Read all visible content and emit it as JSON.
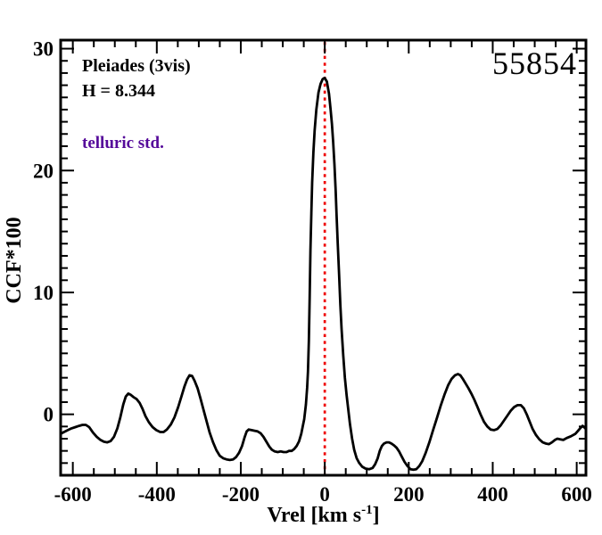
{
  "figure": {
    "star_id": "55854",
    "cluster_label": "Pleiades (3vis)",
    "h_magnitude_label": "H = 8.344",
    "telluric_label": "telluric std.",
    "telluric_color": "#55099a",
    "background": "#ffffff"
  },
  "chart_data": {
    "type": "line",
    "title": "",
    "ylabel": "CCF*100",
    "xlabel": {
      "prefix": "Vrel [km s",
      "sup": "-1",
      "suffix": "]",
      "text": "Vrel [km s^-1]"
    },
    "xlim": [
      -629,
      622
    ],
    "ylim": [
      -5.0,
      30.7
    ],
    "grid": false,
    "legend": "none",
    "frame_color": "#000000",
    "line_color": "#000000",
    "x_major_ticks": [
      {
        "v": -600,
        "label": "-600"
      },
      {
        "v": -400,
        "label": "-400"
      },
      {
        "v": -200,
        "label": "-200"
      },
      {
        "v": 0,
        "label": "0"
      },
      {
        "v": 200,
        "label": "200"
      },
      {
        "v": 400,
        "label": "400"
      },
      {
        "v": 600,
        "label": "600"
      }
    ],
    "x_minor_step": 50,
    "y_major_ticks": [
      {
        "v": 0,
        "label": "0"
      },
      {
        "v": 10,
        "label": "10"
      },
      {
        "v": 20,
        "label": "20"
      },
      {
        "v": 30,
        "label": "30"
      }
    ],
    "y_minor_step": 1,
    "vline": {
      "x": 0,
      "color": "#ee0000",
      "style": "dotted"
    },
    "series": [
      {
        "name": "CCF",
        "peak": {
          "x": 0,
          "y": 27.6
        },
        "points": [
          [
            -629,
            -1.6
          ],
          [
            -621,
            -1.45
          ],
          [
            -612,
            -1.3
          ],
          [
            -603,
            -1.15
          ],
          [
            -594,
            -1.05
          ],
          [
            -585,
            -0.95
          ],
          [
            -577,
            -0.87
          ],
          [
            -569,
            -0.87
          ],
          [
            -561,
            -1.05
          ],
          [
            -552,
            -1.5
          ],
          [
            -543,
            -1.85
          ],
          [
            -534,
            -2.1
          ],
          [
            -526,
            -2.25
          ],
          [
            -518,
            -2.3
          ],
          [
            -510,
            -2.2
          ],
          [
            -502,
            -1.85
          ],
          [
            -494,
            -1.15
          ],
          [
            -487,
            -0.25
          ],
          [
            -480,
            0.8
          ],
          [
            -474,
            1.45
          ],
          [
            -468,
            1.7
          ],
          [
            -462,
            1.6
          ],
          [
            -455,
            1.4
          ],
          [
            -448,
            1.25
          ],
          [
            -441,
            0.95
          ],
          [
            -434,
            0.45
          ],
          [
            -427,
            -0.15
          ],
          [
            -419,
            -0.65
          ],
          [
            -410,
            -1.05
          ],
          [
            -401,
            -1.3
          ],
          [
            -392,
            -1.45
          ],
          [
            -384,
            -1.45
          ],
          [
            -376,
            -1.25
          ],
          [
            -367,
            -0.85
          ],
          [
            -358,
            -0.25
          ],
          [
            -349,
            0.6
          ],
          [
            -341,
            1.5
          ],
          [
            -334,
            2.3
          ],
          [
            -328,
            2.85
          ],
          [
            -322,
            3.2
          ],
          [
            -316,
            3.15
          ],
          [
            -310,
            2.75
          ],
          [
            -303,
            2.15
          ],
          [
            -296,
            1.3
          ],
          [
            -289,
            0.4
          ],
          [
            -282,
            -0.5
          ],
          [
            -274,
            -1.5
          ],
          [
            -266,
            -2.3
          ],
          [
            -258,
            -2.95
          ],
          [
            -250,
            -3.4
          ],
          [
            -242,
            -3.6
          ],
          [
            -234,
            -3.7
          ],
          [
            -226,
            -3.75
          ],
          [
            -218,
            -3.7
          ],
          [
            -211,
            -3.5
          ],
          [
            -204,
            -3.15
          ],
          [
            -197,
            -2.6
          ],
          [
            -191,
            -1.9
          ],
          [
            -186,
            -1.4
          ],
          [
            -181,
            -1.25
          ],
          [
            -174,
            -1.3
          ],
          [
            -167,
            -1.35
          ],
          [
            -160,
            -1.4
          ],
          [
            -153,
            -1.55
          ],
          [
            -146,
            -1.85
          ],
          [
            -139,
            -2.25
          ],
          [
            -132,
            -2.65
          ],
          [
            -126,
            -2.9
          ],
          [
            -119,
            -3.05
          ],
          [
            -112,
            -3.1
          ],
          [
            -105,
            -3.05
          ],
          [
            -98,
            -3.1
          ],
          [
            -91,
            -3.1
          ],
          [
            -85,
            -3.0
          ],
          [
            -79,
            -3.0
          ],
          [
            -73,
            -2.85
          ],
          [
            -67,
            -2.6
          ],
          [
            -61,
            -2.2
          ],
          [
            -56,
            -1.6
          ],
          [
            -52,
            -0.9
          ],
          [
            -49,
            -0.4
          ],
          [
            -45,
            0.8
          ],
          [
            -42,
            2.2
          ],
          [
            -40,
            3.5
          ],
          [
            -38,
            6.0
          ],
          [
            -36,
            9.5
          ],
          [
            -34,
            13.5
          ],
          [
            -32,
            16.5
          ],
          [
            -30,
            19.0
          ],
          [
            -27,
            21.5
          ],
          [
            -24,
            23.3
          ],
          [
            -20,
            25.0
          ],
          [
            -15,
            26.4
          ],
          [
            -10,
            27.1
          ],
          [
            -5,
            27.5
          ],
          [
            0,
            27.6
          ],
          [
            5,
            27.3
          ],
          [
            10,
            26.3
          ],
          [
            14,
            25.0
          ],
          [
            17,
            23.8
          ],
          [
            20,
            22.3
          ],
          [
            23,
            20.5
          ],
          [
            26,
            18.3
          ],
          [
            28,
            16.5
          ],
          [
            31,
            14.0
          ],
          [
            34,
            11.5
          ],
          [
            37,
            9.0
          ],
          [
            40,
            7.0
          ],
          [
            44,
            4.8
          ],
          [
            48,
            3.0
          ],
          [
            52,
            1.6
          ],
          [
            56,
            0.4
          ],
          [
            60,
            -0.8
          ],
          [
            65,
            -2.0
          ],
          [
            70,
            -2.9
          ],
          [
            76,
            -3.6
          ],
          [
            82,
            -4.0
          ],
          [
            89,
            -4.3
          ],
          [
            97,
            -4.45
          ],
          [
            106,
            -4.5
          ],
          [
            114,
            -4.4
          ],
          [
            120,
            -4.1
          ],
          [
            126,
            -3.6
          ],
          [
            131,
            -3.0
          ],
          [
            136,
            -2.6
          ],
          [
            141,
            -2.4
          ],
          [
            147,
            -2.3
          ],
          [
            153,
            -2.3
          ],
          [
            159,
            -2.4
          ],
          [
            165,
            -2.55
          ],
          [
            171,
            -2.75
          ],
          [
            177,
            -3.05
          ],
          [
            183,
            -3.45
          ],
          [
            190,
            -3.9
          ],
          [
            197,
            -4.25
          ],
          [
            204,
            -4.5
          ],
          [
            211,
            -4.55
          ],
          [
            218,
            -4.5
          ],
          [
            225,
            -4.25
          ],
          [
            232,
            -3.85
          ],
          [
            240,
            -3.2
          ],
          [
            249,
            -2.3
          ],
          [
            258,
            -1.3
          ],
          [
            267,
            -0.3
          ],
          [
            276,
            0.7
          ],
          [
            285,
            1.6
          ],
          [
            294,
            2.4
          ],
          [
            302,
            2.9
          ],
          [
            310,
            3.2
          ],
          [
            317,
            3.3
          ],
          [
            323,
            3.2
          ],
          [
            329,
            2.9
          ],
          [
            335,
            2.55
          ],
          [
            342,
            2.15
          ],
          [
            349,
            1.7
          ],
          [
            356,
            1.2
          ],
          [
            363,
            0.65
          ],
          [
            371,
            0.0
          ],
          [
            379,
            -0.6
          ],
          [
            387,
            -1.0
          ],
          [
            395,
            -1.25
          ],
          [
            403,
            -1.3
          ],
          [
            411,
            -1.2
          ],
          [
            419,
            -0.9
          ],
          [
            427,
            -0.5
          ],
          [
            435,
            -0.1
          ],
          [
            443,
            0.3
          ],
          [
            451,
            0.6
          ],
          [
            459,
            0.75
          ],
          [
            467,
            0.75
          ],
          [
            474,
            0.5
          ],
          [
            481,
            0.0
          ],
          [
            488,
            -0.6
          ],
          [
            495,
            -1.2
          ],
          [
            503,
            -1.7
          ],
          [
            511,
            -2.05
          ],
          [
            519,
            -2.3
          ],
          [
            527,
            -2.4
          ],
          [
            534,
            -2.45
          ],
          [
            541,
            -2.3
          ],
          [
            548,
            -2.1
          ],
          [
            554,
            -2.0
          ],
          [
            561,
            -2.05
          ],
          [
            568,
            -2.1
          ],
          [
            576,
            -1.95
          ],
          [
            586,
            -1.8
          ],
          [
            597,
            -1.6
          ],
          [
            607,
            -1.2
          ],
          [
            614,
            -0.95
          ],
          [
            619,
            -1.1
          ],
          [
            622,
            -1.2
          ]
        ]
      }
    ]
  }
}
